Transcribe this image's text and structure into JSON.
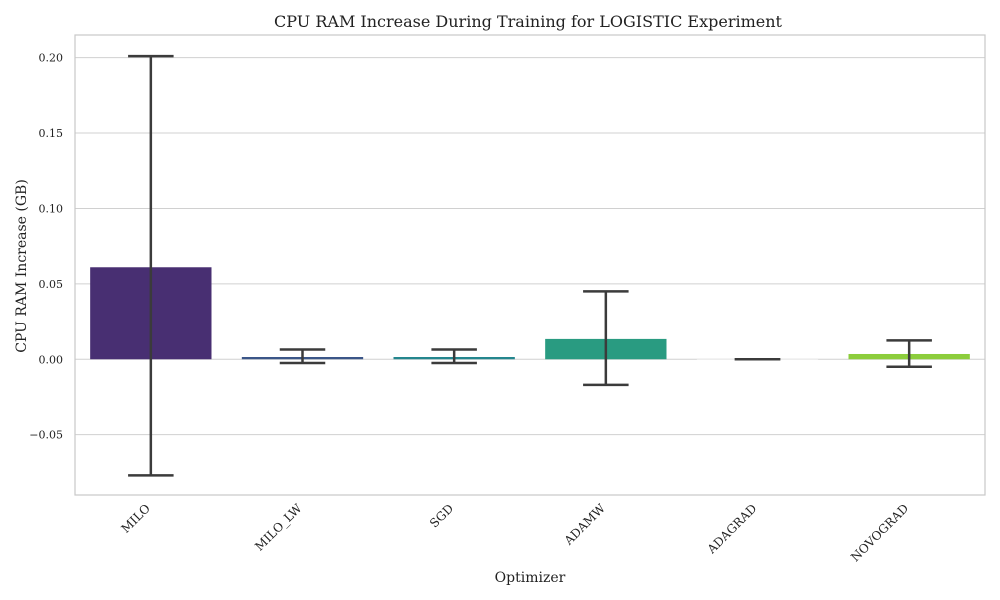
{
  "chart_data": {
    "type": "bar",
    "title": "CPU RAM Increase During Training for LOGISTIC Experiment",
    "xlabel": "Optimizer",
    "ylabel": "CPU RAM Increase (GB)",
    "ylim": [
      -0.09,
      0.215
    ],
    "yticks": [
      -0.05,
      0.0,
      0.05,
      0.1,
      0.15,
      0.2
    ],
    "ytick_labels": [
      "−0.05",
      "0.00",
      "0.05",
      "0.10",
      "0.15",
      "0.20"
    ],
    "grid": true,
    "categories": [
      "MILO",
      "MILO_LW",
      "SGD",
      "ADAMW",
      "ADAGRAD",
      "NOVOGRAD"
    ],
    "values": [
      0.061,
      0.0015,
      0.0015,
      0.0135,
      0.0,
      0.0035
    ],
    "error_low": [
      -0.077,
      -0.0025,
      -0.0025,
      -0.017,
      0.0,
      -0.005
    ],
    "error_high": [
      0.201,
      0.0065,
      0.0065,
      0.045,
      0.0,
      0.0125
    ],
    "colors": [
      "#482f72",
      "#3b5688",
      "#24868e",
      "#299b81",
      "#ffffff",
      "#8ccd3c"
    ]
  }
}
